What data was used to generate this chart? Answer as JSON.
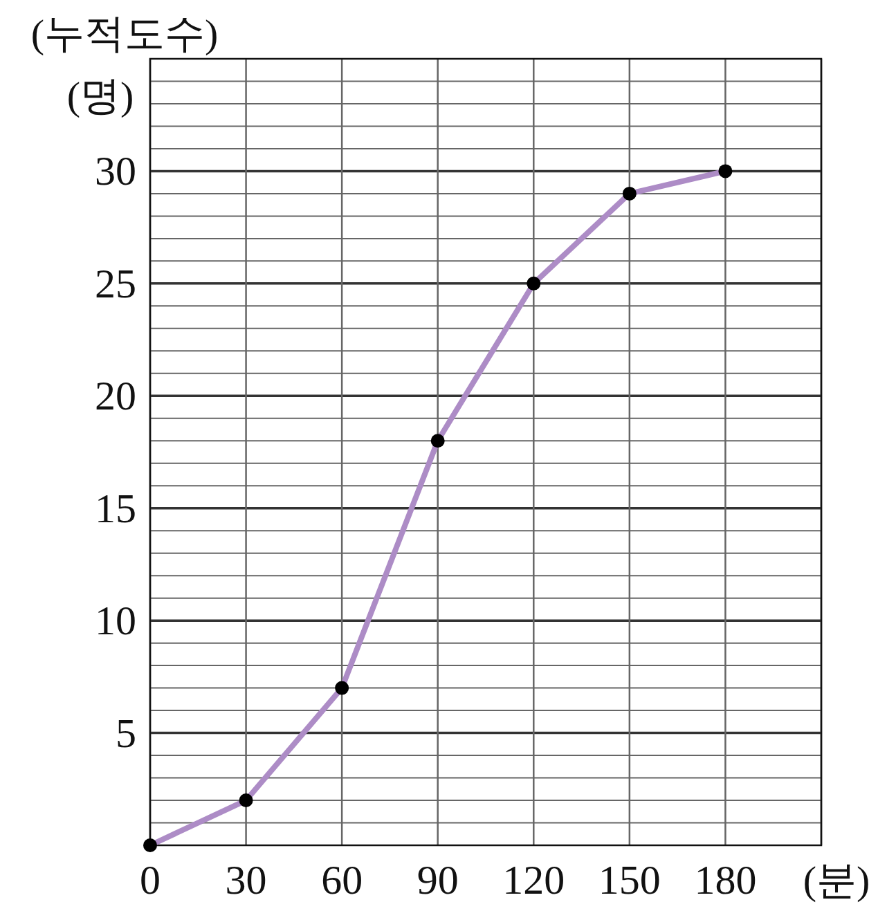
{
  "chart_data": {
    "type": "line",
    "xlabel": "(분)",
    "ylabel": "(누적도수)\n(명)",
    "x": [
      0,
      30,
      60,
      90,
      120,
      150,
      180
    ],
    "series": [
      {
        "color": "#ad8cc6",
        "values": [
          0,
          2,
          7,
          18,
          25,
          29,
          30
        ]
      }
    ],
    "marker": "circle",
    "line_style": "solid",
    "grid": true,
    "xlim": [
      0,
      210
    ],
    "ylim": [
      0,
      35
    ],
    "xticks": [
      0,
      30,
      60,
      90,
      120,
      150,
      180,
      {
        "value": 210,
        "label": null
      }
    ],
    "yticks": [
      {
        "value": 0,
        "label": null
      },
      {
        "value": 1,
        "label": null
      },
      {
        "value": 2,
        "label": null
      },
      {
        "value": 3,
        "label": null
      },
      {
        "value": 4,
        "label": null
      },
      5,
      {
        "value": 6,
        "label": null
      },
      {
        "value": 7,
        "label": null
      },
      {
        "value": 8,
        "label": null
      },
      {
        "value": 9,
        "label": null
      },
      10,
      {
        "value": 11,
        "label": null
      },
      {
        "value": 12,
        "label": null
      },
      {
        "value": 13,
        "label": null
      },
      {
        "value": 14,
        "label": null
      },
      15,
      {
        "value": 16,
        "label": null
      },
      {
        "value": 17,
        "label": null
      },
      {
        "value": 18,
        "label": null
      },
      {
        "value": 19,
        "label": null
      },
      20,
      {
        "value": 21,
        "label": null
      },
      {
        "value": 22,
        "label": null
      },
      {
        "value": 23,
        "label": null
      },
      {
        "value": 24,
        "label": null
      },
      25,
      {
        "value": 26,
        "label": null
      },
      {
        "value": 27,
        "label": null
      },
      {
        "value": 28,
        "label": null
      },
      {
        "value": 29,
        "label": null
      },
      30,
      {
        "value": 31,
        "label": null
      },
      {
        "value": 32,
        "label": null
      },
      {
        "value": 33,
        "label": null
      },
      {
        "value": 34,
        "label": null
      },
      {
        "value": 35,
        "label": null
      }
    ]
  }
}
